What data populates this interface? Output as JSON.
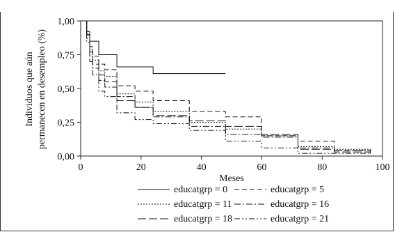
{
  "chart_data": {
    "type": "line",
    "xlabel": "Meses",
    "ylabel_line1": "Individuos que aún",
    "ylabel_line2": "permanecen en desempleo (%)",
    "xlim": [
      0,
      100
    ],
    "ylim": [
      0,
      1
    ],
    "x_ticks": [
      0,
      20,
      40,
      60,
      80,
      100
    ],
    "y_ticks": [
      0.0,
      0.25,
      0.5,
      0.75,
      1.0
    ],
    "x_tick_labels": [
      "0",
      "20",
      "40",
      "60",
      "80",
      "100"
    ],
    "y_tick_labels": [
      "0,00",
      "0,25",
      "0,50",
      "0,75",
      "1,00"
    ],
    "step": true,
    "grid": false,
    "legend_position": "bottom",
    "legend_columns": 2,
    "series": [
      {
        "name": "educatgrp = 0",
        "dash": "solid",
        "x": [
          1,
          2,
          3,
          6,
          12,
          24,
          48
        ],
        "y": [
          1.0,
          0.92,
          0.85,
          0.75,
          0.66,
          0.61,
          0.61
        ]
      },
      {
        "name": "educatgrp = 5",
        "dash": "dashed",
        "x": [
          1,
          2,
          3,
          4,
          6,
          8,
          12,
          18,
          24,
          36,
          48,
          60,
          72,
          84,
          96
        ],
        "y": [
          1.0,
          0.9,
          0.81,
          0.74,
          0.68,
          0.64,
          0.52,
          0.48,
          0.41,
          0.33,
          0.29,
          0.15,
          0.11,
          0.04,
          0.03
        ]
      },
      {
        "name": "educatgrp = 11",
        "dash": "dotted",
        "x": [
          1,
          2,
          3,
          4,
          6,
          8,
          12,
          18,
          24,
          36,
          48,
          60,
          72,
          84,
          96
        ],
        "y": [
          1.0,
          0.89,
          0.79,
          0.71,
          0.63,
          0.59,
          0.46,
          0.4,
          0.33,
          0.25,
          0.2,
          0.15,
          0.07,
          0.05,
          0.03
        ]
      },
      {
        "name": "educatgrp = 16",
        "dash": "dashdot",
        "x": [
          1,
          2,
          3,
          4,
          6,
          8,
          12,
          18,
          24,
          36,
          48,
          60,
          72,
          84,
          96
        ],
        "y": [
          1.0,
          0.87,
          0.74,
          0.65,
          0.56,
          0.51,
          0.44,
          0.36,
          0.29,
          0.22,
          0.16,
          0.14,
          0.06,
          0.04,
          0.02
        ]
      },
      {
        "name": "educatgrp = 18",
        "dash": "longdash",
        "x": [
          1,
          2,
          3,
          4,
          6,
          8,
          12,
          18,
          24,
          36,
          48,
          60,
          72,
          84,
          96
        ],
        "y": [
          1.0,
          0.88,
          0.77,
          0.68,
          0.6,
          0.55,
          0.41,
          0.36,
          0.3,
          0.26,
          0.22,
          0.16,
          0.05,
          0.03,
          0.02
        ]
      },
      {
        "name": "educatgrp = 21",
        "dash": "dashdotdot",
        "x": [
          1,
          2,
          3,
          4,
          6,
          8,
          12,
          18,
          24,
          36,
          48,
          60,
          72,
          84,
          96
        ],
        "y": [
          1.0,
          0.84,
          0.7,
          0.6,
          0.48,
          0.44,
          0.32,
          0.27,
          0.24,
          0.19,
          0.11,
          0.06,
          0.02,
          0.02,
          0.01
        ]
      }
    ]
  }
}
